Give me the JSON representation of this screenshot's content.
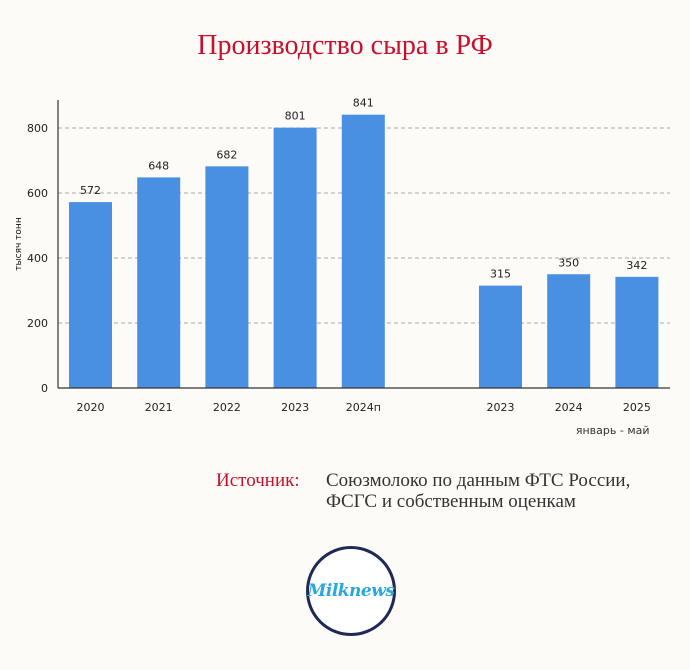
{
  "chart_data": {
    "type": "bar",
    "title": "Производство сыра в РФ",
    "ylabel": "тысяч тонн",
    "ylim": [
      0,
      900
    ],
    "yticks": [
      0,
      200,
      400,
      600,
      800
    ],
    "grid": true,
    "groups": [
      {
        "label": "",
        "categories": [
          "2020",
          "2021",
          "2022",
          "2023",
          "2024п"
        ],
        "values": [
          572,
          648,
          682,
          801,
          841
        ]
      },
      {
        "label": "январь - май",
        "categories": [
          "2023",
          "2024",
          "2025"
        ],
        "values": [
          315,
          350,
          342
        ]
      }
    ],
    "bar_color": "#4a90e2"
  },
  "source": {
    "label": "Источник:",
    "text_line1": "Союзмолоко по данным ФТС России,",
    "text_line2": "ФСГС и собственным оценкам"
  },
  "logo": {
    "text": "Milknews"
  }
}
